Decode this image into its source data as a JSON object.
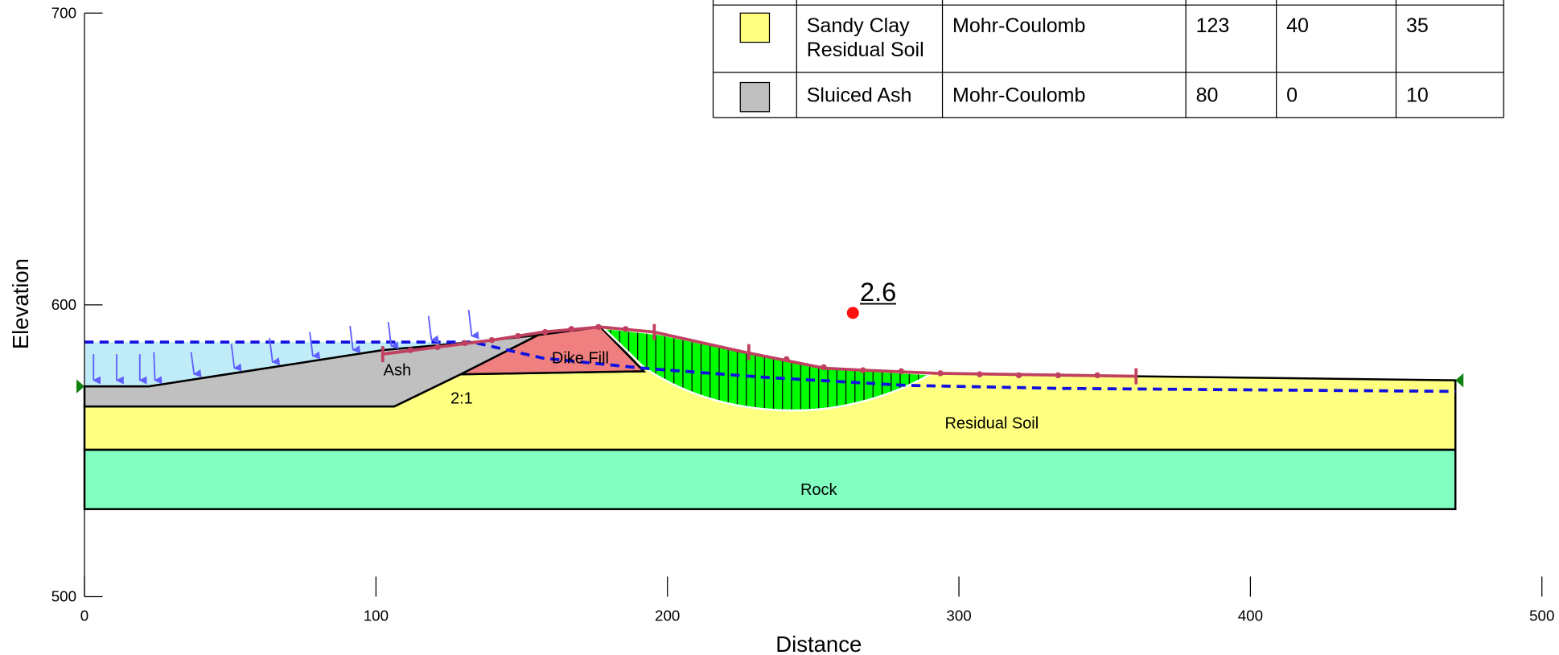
{
  "axes": {
    "x_label": "Distance",
    "y_label": "Elevation",
    "xlim": [
      0,
      500
    ],
    "ylim": [
      500,
      700
    ],
    "xticks": [
      0,
      100,
      200,
      300,
      400,
      500
    ],
    "yticks": [
      500,
      600,
      700
    ]
  },
  "table": {
    "rows": [
      {
        "color": "#ffff80",
        "name": [
          "Sandy Clay",
          "Residual Soil"
        ],
        "cells": [
          "Mohr-Coulomb",
          123,
          40,
          35
        ]
      },
      {
        "color": "#c0c0c0",
        "name": [
          "Sluiced Ash"
        ],
        "cells": [
          "Mohr-Coulomb",
          80,
          0,
          10
        ]
      }
    ]
  },
  "regions": [
    "Ash",
    "Dike Fill",
    "2:1",
    "Residual Soil",
    "Rock"
  ],
  "factor_of_safety": 2.6
}
